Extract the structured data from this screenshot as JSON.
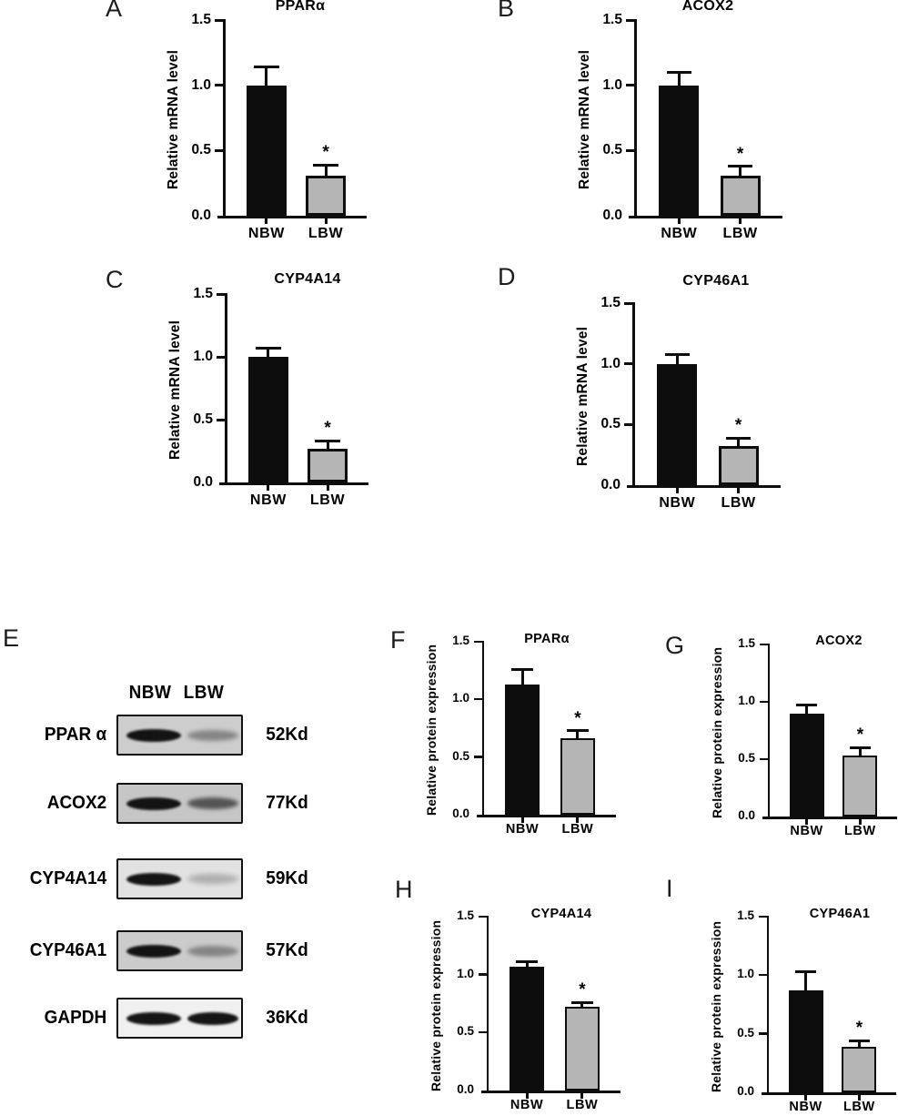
{
  "figure": {
    "colors": {
      "nbw_bar": "#0d0d0d",
      "lbw_bar": "#b5b5b5",
      "axis": "#0d0d0d"
    }
  },
  "chart_data": [
    {
      "panel": "A",
      "type": "bar",
      "title": "PPARα",
      "ylabel": "Relative mRNA level",
      "categories": [
        "NBW",
        "LBW"
      ],
      "values": [
        1.0,
        0.31
      ],
      "errors": [
        0.14,
        0.08
      ],
      "significance": [
        "",
        "*"
      ],
      "ylim": [
        0,
        1.5
      ],
      "yticks": [
        0,
        0.5,
        1.0,
        1.5
      ],
      "ytick_labels": [
        "0.0",
        "0.5",
        "1.0",
        "1.5"
      ],
      "grid": false,
      "legend": "none"
    },
    {
      "panel": "B",
      "type": "bar",
      "title": "ACOX2",
      "ylabel": "Relative mRNA level",
      "categories": [
        "NBW",
        "LBW"
      ],
      "values": [
        1.0,
        0.31
      ],
      "errors": [
        0.1,
        0.07
      ],
      "significance": [
        "",
        "*"
      ],
      "ylim": [
        0,
        1.5
      ],
      "yticks": [
        0,
        0.5,
        1.0,
        1.5
      ],
      "ytick_labels": [
        "0.0",
        "0.5",
        "1.0",
        "1.5"
      ],
      "grid": false,
      "legend": "none"
    },
    {
      "panel": "C",
      "type": "bar",
      "title": "CYP4A14",
      "ylabel": "Relative mRNA level",
      "categories": [
        "NBW",
        "LBW"
      ],
      "values": [
        1.0,
        0.27
      ],
      "errors": [
        0.07,
        0.06
      ],
      "significance": [
        "",
        "*"
      ],
      "ylim": [
        0,
        1.5
      ],
      "yticks": [
        0,
        0.5,
        1.0,
        1.5
      ],
      "ytick_labels": [
        "0.0",
        "0.5",
        "1.0",
        "1.5"
      ],
      "grid": false,
      "legend": "none"
    },
    {
      "panel": "D",
      "type": "bar",
      "title": "CYP46A1",
      "ylabel": "Relative mRNA level",
      "categories": [
        "NBW",
        "LBW"
      ],
      "values": [
        1.0,
        0.32
      ],
      "errors": [
        0.08,
        0.07
      ],
      "significance": [
        "",
        "*"
      ],
      "ylim": [
        0,
        1.5
      ],
      "yticks": [
        0,
        0.5,
        1.0,
        1.5
      ],
      "ytick_labels": [
        "0.0",
        "0.5",
        "1.0",
        "1.5"
      ],
      "grid": false,
      "legend": "none"
    },
    {
      "panel": "F",
      "type": "bar",
      "title": "PPARα",
      "ylabel": "Relative protein expression",
      "categories": [
        "NBW",
        "LBW"
      ],
      "values": [
        1.13,
        0.66
      ],
      "errors": [
        0.13,
        0.07
      ],
      "significance": [
        "",
        "*"
      ],
      "ylim": [
        0,
        1.5
      ],
      "yticks": [
        0,
        0.5,
        1.0,
        1.5
      ],
      "ytick_labels": [
        "0.0",
        "0.5",
        "1.0",
        "1.5"
      ],
      "grid": false,
      "legend": "none"
    },
    {
      "panel": "G",
      "type": "bar",
      "title": "ACOX2",
      "ylabel": "Relative protein expression",
      "categories": [
        "NBW",
        "LBW"
      ],
      "values": [
        0.9,
        0.53
      ],
      "errors": [
        0.07,
        0.07
      ],
      "significance": [
        "",
        "*"
      ],
      "ylim": [
        0,
        1.5
      ],
      "yticks": [
        0,
        0.5,
        1.0,
        1.5
      ],
      "ytick_labels": [
        "0.0",
        "0.5",
        "1.0",
        "1.5"
      ],
      "grid": false,
      "legend": "none"
    },
    {
      "panel": "H",
      "type": "bar",
      "title": "CYP4A14",
      "ylabel": "Relative protein expression",
      "categories": [
        "NBW",
        "LBW"
      ],
      "values": [
        1.07,
        0.72
      ],
      "errors": [
        0.04,
        0.04
      ],
      "significance": [
        "",
        "*"
      ],
      "ylim": [
        0,
        1.5
      ],
      "yticks": [
        0,
        0.5,
        1.0,
        1.5
      ],
      "ytick_labels": [
        "0.0",
        "0.5",
        "1.0",
        "1.5"
      ],
      "grid": false,
      "legend": "none"
    },
    {
      "panel": "I",
      "type": "bar",
      "title": "CYP46A1",
      "ylabel": "Relative protein expression",
      "categories": [
        "NBW",
        "LBW"
      ],
      "values": [
        0.87,
        0.39
      ],
      "errors": [
        0.16,
        0.05
      ],
      "significance": [
        "",
        "*"
      ],
      "ylim": [
        0,
        1.5
      ],
      "yticks": [
        0,
        0.5,
        1.0,
        1.5
      ],
      "ytick_labels": [
        "0.0",
        "0.5",
        "1.0",
        "1.5"
      ],
      "grid": false,
      "legend": "none"
    }
  ],
  "blot": {
    "letter": "E",
    "lane_headers": [
      "NBW",
      "LBW"
    ],
    "rows": [
      {
        "label": "PPAR α",
        "kd": "52Kd",
        "band_intensity": {
          "NBW": "strong",
          "LBW": "faint"
        }
      },
      {
        "label": "ACOX2",
        "kd": "77Kd",
        "band_intensity": {
          "NBW": "strong",
          "LBW": "medium"
        }
      },
      {
        "label": "CYP4A14",
        "kd": "59Kd",
        "band_intensity": {
          "NBW": "strong",
          "LBW": "very-faint"
        }
      },
      {
        "label": "CYP46A1",
        "kd": "57Kd",
        "band_intensity": {
          "NBW": "strong",
          "LBW": "faint"
        }
      },
      {
        "label": "GAPDH",
        "kd": "36Kd",
        "band_intensity": {
          "NBW": "strong",
          "LBW": "strong"
        }
      }
    ]
  }
}
